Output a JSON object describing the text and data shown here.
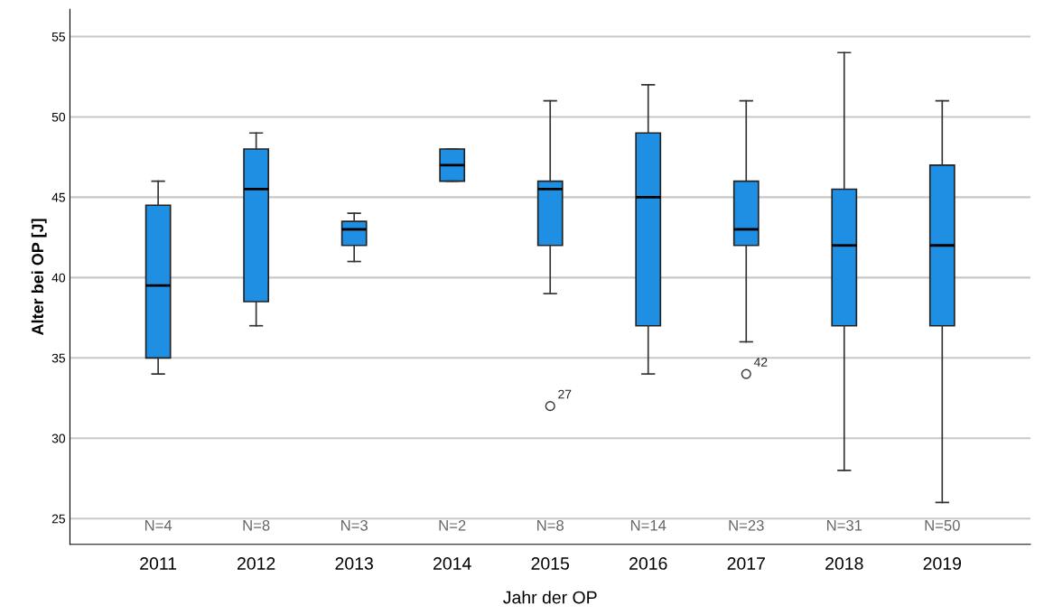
{
  "chart_data": {
    "type": "box",
    "xlabel": "Jahr der OP",
    "ylabel": "Alter bei OP [J]",
    "categories": [
      "2011",
      "2012",
      "2013",
      "2014",
      "2015",
      "2016",
      "2017",
      "2018",
      "2019"
    ],
    "color": "#1e8fe3",
    "boxes": [
      {
        "low": 34,
        "q1": 35,
        "median": 39.5,
        "q3": 44.5,
        "high": 46
      },
      {
        "low": 37,
        "q1": 38.5,
        "median": 45.5,
        "q3": 48,
        "high": 49
      },
      {
        "low": 41,
        "q1": 42,
        "median": 43,
        "q3": 43.5,
        "high": 44
      },
      {
        "low": 46,
        "q1": 46,
        "median": 47,
        "q3": 48,
        "high": 48
      },
      {
        "low": 39,
        "q1": 42,
        "median": 45.5,
        "q3": 46,
        "high": 51,
        "outliers": [
          32
        ]
      },
      {
        "low": 34,
        "q1": 37,
        "median": 45,
        "q3": 49,
        "high": 52
      },
      {
        "low": 36,
        "q1": 42,
        "median": 43,
        "q3": 46,
        "high": 51,
        "outliers": [
          34
        ]
      },
      {
        "low": 28,
        "q1": 37,
        "median": 42,
        "q3": 45.5,
        "high": 54
      },
      {
        "low": 26,
        "q1": 37,
        "median": 42,
        "q3": 47,
        "high": 51
      }
    ],
    "ylim": [
      23.4,
      56.7
    ],
    "yticks": [
      25,
      30,
      35,
      40,
      45,
      50,
      55
    ],
    "grid": "y",
    "annotations": [
      "N=4",
      "N=8",
      "N=3",
      "N=2",
      "N=8",
      "N=14",
      "N=23",
      "N=31",
      "N=50",
      "27",
      "42"
    ]
  }
}
